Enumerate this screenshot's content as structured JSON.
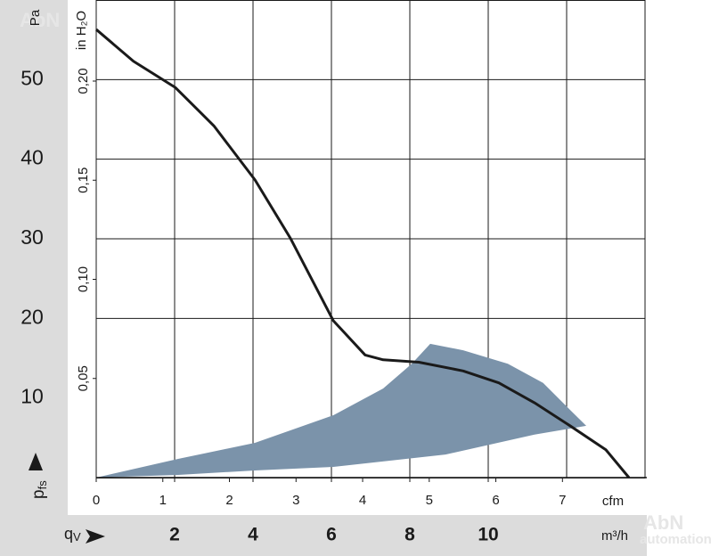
{
  "chart_data": {
    "type": "line",
    "x": [
      0,
      0.95,
      2.02,
      3.0,
      4.05,
      4.95,
      6.05,
      6.86,
      7.32,
      8.23,
      9.36,
      10.27,
      11.18,
      12.09,
      13.0,
      13.59
    ],
    "series": [
      {
        "color": "#1a1a1a",
        "values": [
          56.3,
          52.3,
          49.0,
          44.2,
          37.4,
          30.1,
          19.7,
          15.4,
          14.8,
          14.5,
          13.4,
          11.9,
          9.4,
          6.5,
          3.5,
          0
        ]
      }
    ],
    "region": {
      "color": "#7b93aa",
      "x": [
        0,
        2.09,
        4.05,
        6.05,
        7.32,
        8.05,
        8.52,
        9.36,
        10.5,
        11.4,
        12.09,
        12.5,
        11.18,
        8.91,
        6.05,
        4.05,
        2.09
      ],
      "y": [
        0,
        2.35,
        4.36,
        7.83,
        11.2,
        14.3,
        16.8,
        16.0,
        14.3,
        11.9,
        8.5,
        6.5,
        5.4,
        2.9,
        1.34,
        0.9,
        0.34
      ]
    },
    "xlim": [
      0,
      14
    ],
    "xticks": [
      2,
      4,
      6,
      8,
      10
    ],
    "xgrid": [
      2,
      4,
      6,
      8,
      10,
      12
    ],
    "x_symbol": "q",
    "x_subscript": "V",
    "x_label": "m³/h",
    "x2lim": [
      0,
      8.24
    ],
    "x2ticks": [
      0,
      1,
      2,
      3,
      4,
      5,
      6,
      7
    ],
    "x2_label": "cfm",
    "ylim": [
      0,
      60
    ],
    "yticks": [
      10,
      20,
      30,
      40,
      50
    ],
    "ygrid": [
      20,
      30,
      40,
      50
    ],
    "y_label": "Pa",
    "y_symbol": "p",
    "y_subscript": "fs",
    "y2lim": [
      0,
      0.2409
    ],
    "y2ticks": [
      {
        "value": 0.05,
        "label": "0,05"
      },
      {
        "value": 0.1,
        "label": "0,10"
      },
      {
        "value": 0.15,
        "label": "0,15"
      },
      {
        "value": 0.2,
        "label": "0,20"
      }
    ],
    "y2_label": "in H₂O",
    "watermark": [
      "AbN",
      "automation"
    ]
  }
}
